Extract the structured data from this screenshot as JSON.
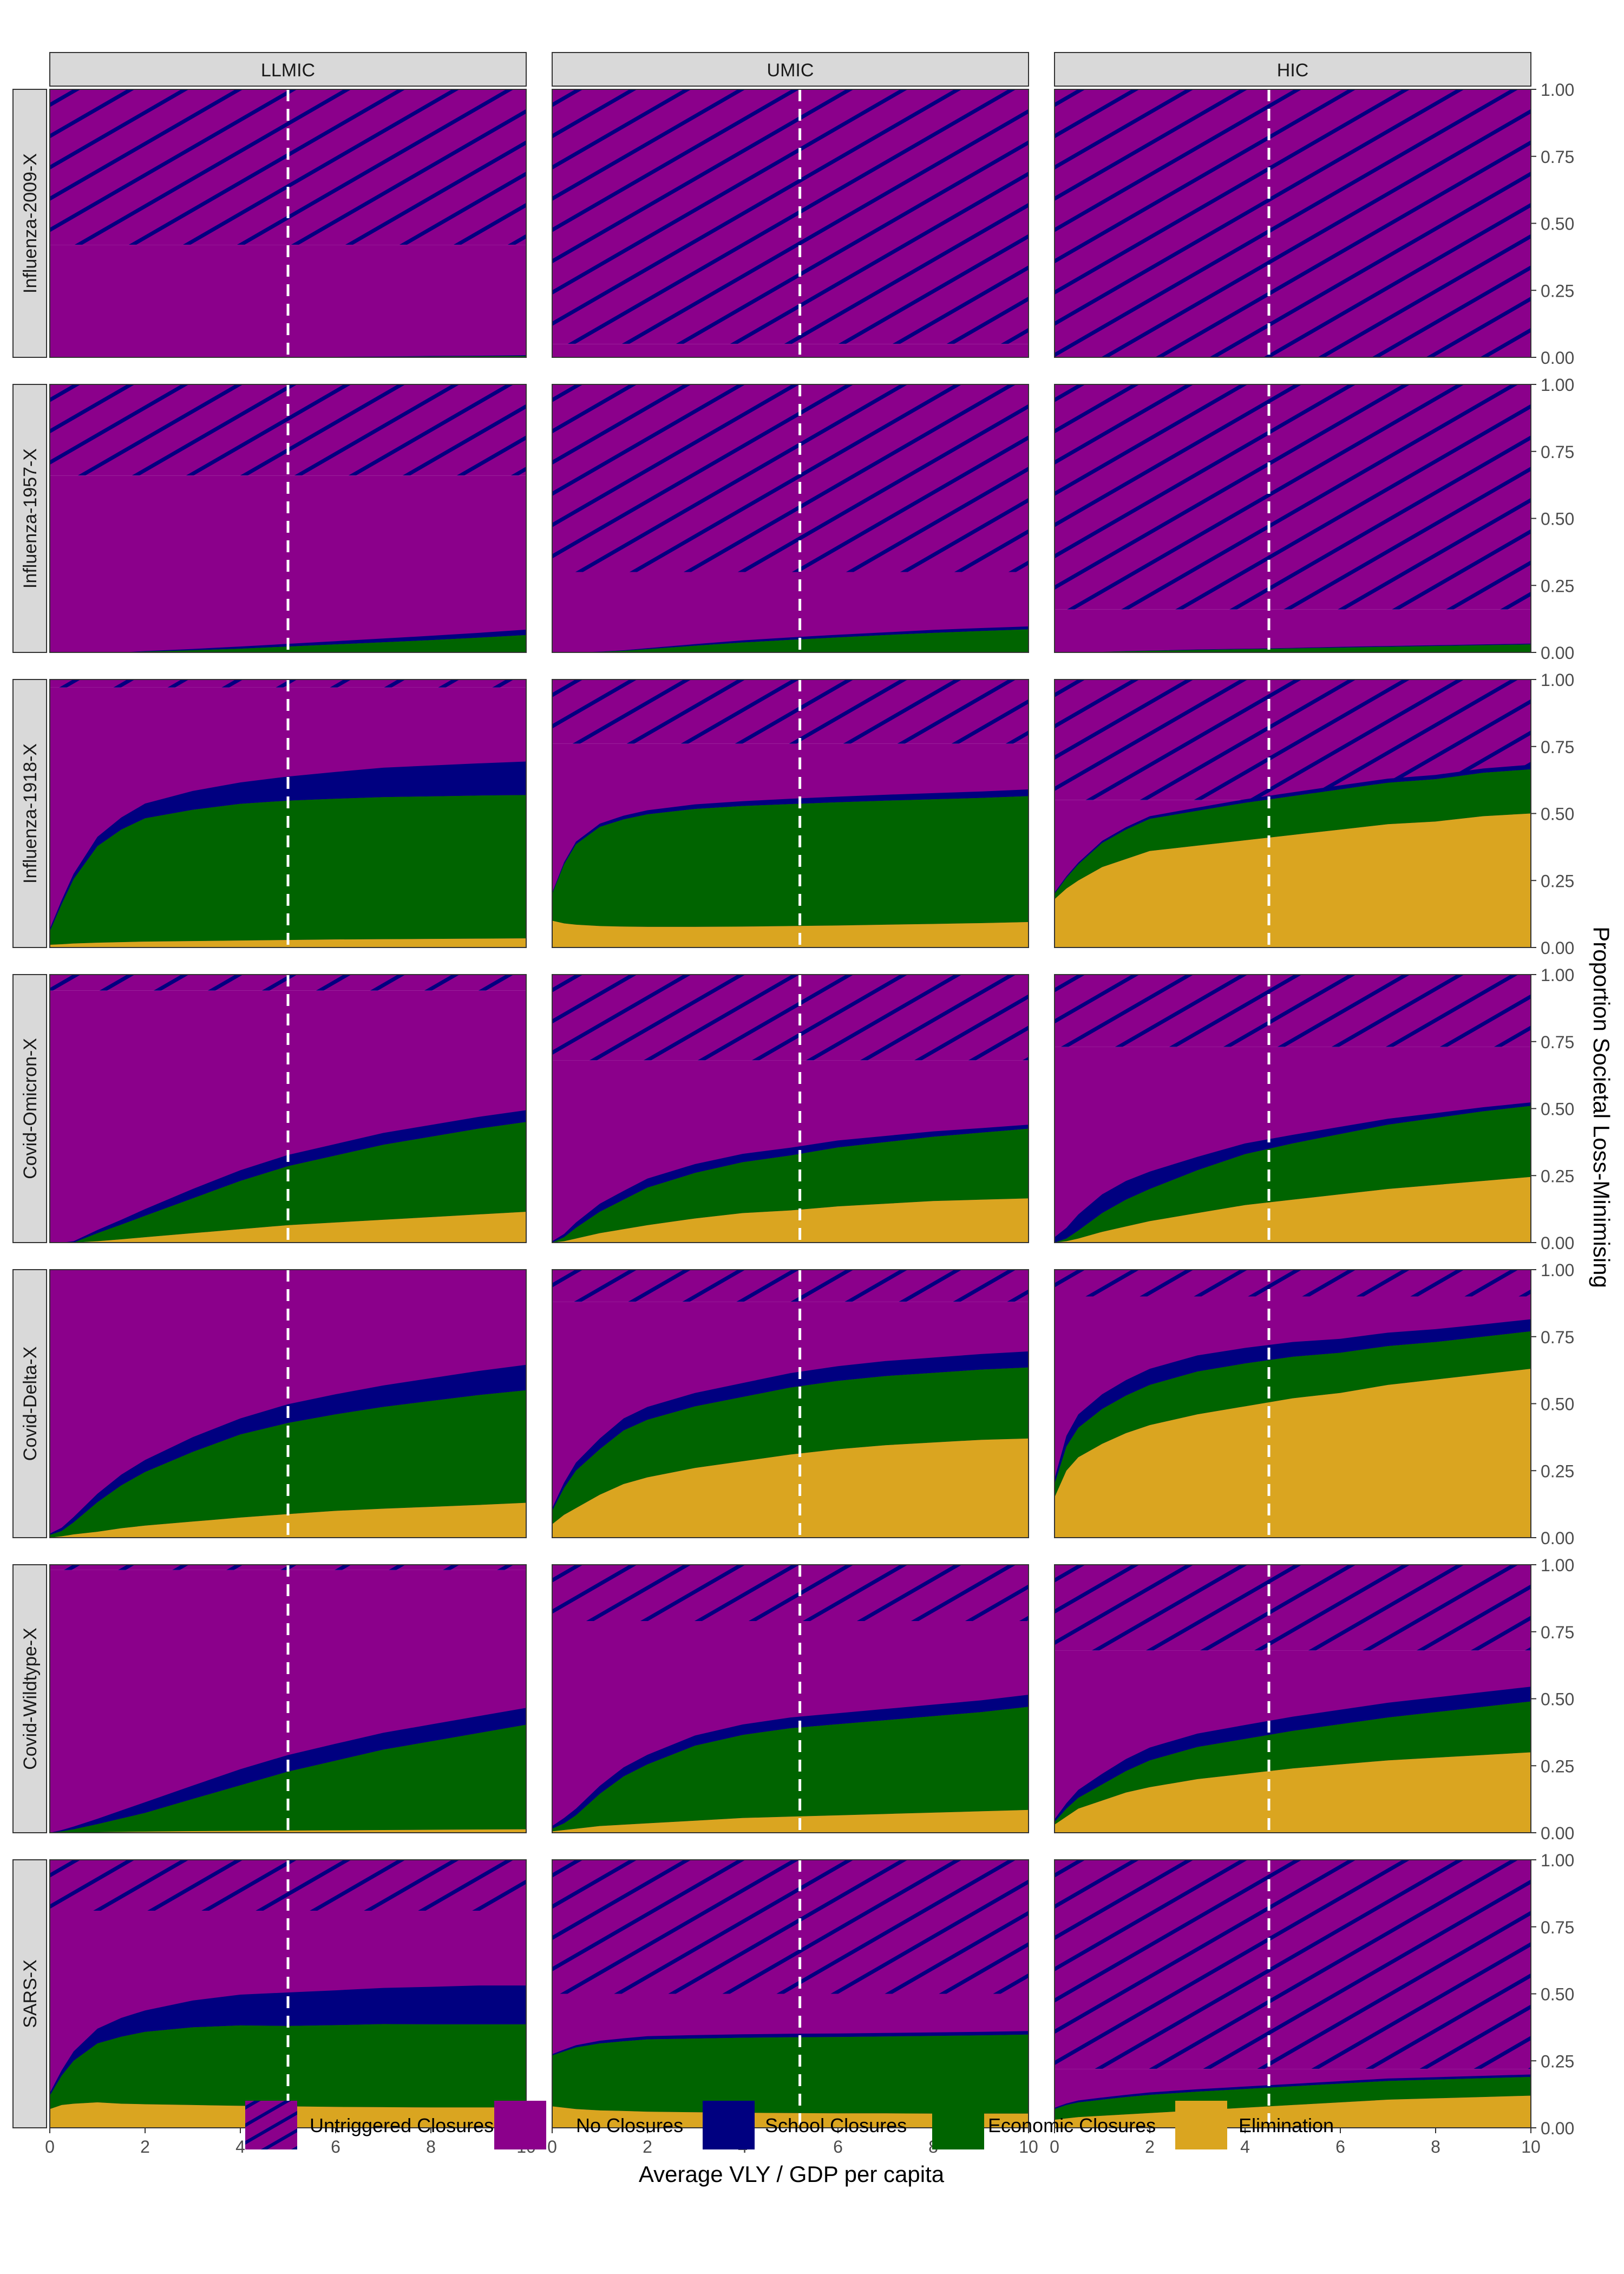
{
  "colors": {
    "untriggered": "#8b008b",
    "hatch_line": "#000080",
    "no_closures": "#8b008b",
    "school": "#000080",
    "economic": "#006400",
    "elimination": "#daa520",
    "strip_bg": "#d9d9d9",
    "vline": "#ffffff"
  },
  "chart_data": {
    "type": "area",
    "subtype": "stacked area, faceted grid",
    "xlabel": "Average VLY / GDP per capita",
    "ylabel": "Proportion Societal Loss-Minimising",
    "xlim": [
      0,
      10
    ],
    "ylim": [
      0,
      1
    ],
    "xticks": [
      "0",
      "2",
      "4",
      "6",
      "8",
      "10"
    ],
    "yticks": [
      "0.00",
      "0.25",
      "0.50",
      "0.75",
      "1.00"
    ],
    "columns": [
      "LLMIC",
      "UMIC",
      "HIC"
    ],
    "rows": [
      "Influenza-2009-X",
      "Influenza-1957-X",
      "Influenza-1918-X",
      "Covid-Omicron-X",
      "Covid-Delta-X",
      "Covid-Wildtype-X",
      "SARS-X"
    ],
    "reference_lines_x": {
      "LLMIC": 5.0,
      "UMIC": 5.2,
      "HIC": 4.5
    },
    "legend": {
      "position": "bottom",
      "items": [
        "Untriggered Closures",
        "No Closures",
        "School Closures",
        "Economic Closures",
        "Elimination"
      ]
    },
    "x": [
      0,
      0.25,
      0.5,
      1,
      1.5,
      2,
      3,
      4,
      5,
      6,
      7,
      8,
      9,
      10
    ],
    "panels": [
      {
        "row": "Influenza-2009-X",
        "col": "LLMIC",
        "untriggered": 0.58,
        "elimination": [
          0,
          0,
          0,
          0,
          0,
          0,
          0,
          0,
          0,
          0,
          0,
          0,
          0,
          0
        ],
        "economic": [
          0,
          0,
          0,
          0,
          0,
          0,
          0,
          0,
          0,
          0.001,
          0.002,
          0.003,
          0.004,
          0.005
        ],
        "school": [
          0,
          0,
          0,
          0,
          0,
          0,
          0,
          0,
          0,
          0.001,
          0.001,
          0.002,
          0.002,
          0.003
        ]
      },
      {
        "row": "Influenza-2009-X",
        "col": "UMIC",
        "untriggered": 0.95,
        "elimination": [
          0,
          0,
          0,
          0,
          0,
          0,
          0,
          0,
          0,
          0,
          0,
          0,
          0,
          0
        ],
        "economic": [
          0,
          0,
          0,
          0,
          0,
          0,
          0,
          0,
          0,
          0,
          0,
          0,
          0,
          0
        ],
        "school": [
          0,
          0,
          0,
          0,
          0,
          0,
          0,
          0,
          0,
          0,
          0,
          0,
          0,
          0
        ]
      },
      {
        "row": "Influenza-2009-X",
        "col": "HIC",
        "untriggered": 1.0,
        "elimination": [
          0,
          0,
          0,
          0,
          0,
          0,
          0,
          0,
          0,
          0,
          0,
          0,
          0,
          0
        ],
        "economic": [
          0,
          0,
          0,
          0,
          0,
          0,
          0,
          0,
          0,
          0,
          0,
          0,
          0,
          0
        ],
        "school": [
          0,
          0,
          0,
          0,
          0,
          0,
          0,
          0,
          0,
          0,
          0,
          0,
          0,
          0
        ]
      },
      {
        "row": "Influenza-1957-X",
        "col": "LLMIC",
        "untriggered": 0.34,
        "elimination": [
          0,
          0,
          0,
          0,
          0,
          0,
          0,
          0,
          0,
          0,
          0,
          0,
          0,
          0
        ],
        "economic": [
          0,
          0,
          0,
          0,
          0,
          0.003,
          0.008,
          0.014,
          0.022,
          0.03,
          0.038,
          0.046,
          0.055,
          0.065
        ],
        "school": [
          0,
          0,
          0,
          0,
          0,
          0.002,
          0.005,
          0.008,
          0.01,
          0.012,
          0.014,
          0.016,
          0.018,
          0.02
        ]
      },
      {
        "row": "Influenza-1957-X",
        "col": "UMIC",
        "untriggered": 0.7,
        "elimination": [
          0,
          0,
          0,
          0,
          0,
          0,
          0,
          0,
          0,
          0,
          0,
          0,
          0,
          0
        ],
        "economic": [
          0,
          0,
          0,
          0.002,
          0.006,
          0.012,
          0.025,
          0.037,
          0.047,
          0.056,
          0.065,
          0.073,
          0.08,
          0.086
        ],
        "school": [
          0,
          0,
          0,
          0.001,
          0.002,
          0.004,
          0.006,
          0.008,
          0.009,
          0.01,
          0.01,
          0.011,
          0.011,
          0.011
        ]
      },
      {
        "row": "Influenza-1957-X",
        "col": "HIC",
        "untriggered": 0.84,
        "elimination": [
          0,
          0,
          0,
          0,
          0,
          0,
          0,
          0,
          0,
          0,
          0,
          0,
          0,
          0
        ],
        "economic": [
          0,
          0,
          0,
          0.002,
          0.004,
          0.006,
          0.009,
          0.012,
          0.015,
          0.018,
          0.021,
          0.024,
          0.027,
          0.03
        ],
        "school": [
          0,
          0,
          0,
          0,
          0.001,
          0.001,
          0.002,
          0.002,
          0.002,
          0.003,
          0.003,
          0.003,
          0.003,
          0.003
        ]
      },
      {
        "row": "Influenza-1918-X",
        "col": "LLMIC",
        "untriggered": 0.03,
        "elimination": [
          0.01,
          0.012,
          0.015,
          0.018,
          0.02,
          0.022,
          0.024,
          0.026,
          0.028,
          0.03,
          0.031,
          0.032,
          0.033,
          0.034
        ],
        "economic": [
          0.05,
          0.15,
          0.24,
          0.36,
          0.42,
          0.46,
          0.49,
          0.51,
          0.52,
          0.525,
          0.53,
          0.532,
          0.534,
          0.535
        ],
        "school": [
          0.01,
          0.015,
          0.02,
          0.035,
          0.045,
          0.055,
          0.07,
          0.08,
          0.09,
          0.1,
          0.11,
          0.115,
          0.12,
          0.125
        ]
      },
      {
        "row": "Influenza-1918-X",
        "col": "UMIC",
        "untriggered": 0.24,
        "elimination": [
          0.1,
          0.09,
          0.085,
          0.08,
          0.078,
          0.077,
          0.077,
          0.078,
          0.08,
          0.082,
          0.085,
          0.088,
          0.091,
          0.095
        ],
        "economic": [
          0.1,
          0.22,
          0.3,
          0.37,
          0.4,
          0.42,
          0.44,
          0.45,
          0.455,
          0.46,
          0.463,
          0.465,
          0.467,
          0.47
        ],
        "school": [
          0.005,
          0.008,
          0.01,
          0.012,
          0.014,
          0.015,
          0.017,
          0.018,
          0.02,
          0.021,
          0.022,
          0.023,
          0.024,
          0.025
        ]
      },
      {
        "row": "Influenza-1918-X",
        "col": "HIC",
        "untriggered": 0.45,
        "elimination": [
          0.18,
          0.22,
          0.25,
          0.3,
          0.33,
          0.36,
          0.38,
          0.4,
          0.42,
          0.44,
          0.46,
          0.47,
          0.49,
          0.5
        ],
        "economic": [
          0.02,
          0.04,
          0.06,
          0.09,
          0.11,
          0.12,
          0.13,
          0.14,
          0.145,
          0.15,
          0.155,
          0.158,
          0.162,
          0.165
        ],
        "school": [
          0.005,
          0.006,
          0.007,
          0.008,
          0.009,
          0.01,
          0.012,
          0.013,
          0.014,
          0.015,
          0.015,
          0.016,
          0.016,
          0.017
        ]
      },
      {
        "row": "Covid-Omicron-X",
        "col": "LLMIC",
        "untriggered": 0.06,
        "elimination": [
          0,
          0,
          0,
          0.005,
          0.012,
          0.02,
          0.035,
          0.05,
          0.065,
          0.075,
          0.085,
          0.095,
          0.105,
          0.115
        ],
        "economic": [
          0,
          0,
          0,
          0.03,
          0.055,
          0.08,
          0.13,
          0.18,
          0.22,
          0.25,
          0.28,
          0.3,
          0.32,
          0.335
        ],
        "school": [
          0,
          0,
          0.005,
          0.012,
          0.018,
          0.025,
          0.035,
          0.04,
          0.042,
          0.043,
          0.044,
          0.044,
          0.044,
          0.044
        ]
      },
      {
        "row": "Covid-Omicron-X",
        "col": "UMIC",
        "untriggered": 0.32,
        "elimination": [
          0,
          0.005,
          0.015,
          0.035,
          0.05,
          0.065,
          0.09,
          0.11,
          0.12,
          0.135,
          0.145,
          0.155,
          0.16,
          0.165
        ],
        "economic": [
          0,
          0.015,
          0.04,
          0.08,
          0.11,
          0.14,
          0.17,
          0.19,
          0.205,
          0.22,
          0.23,
          0.24,
          0.25,
          0.26
        ],
        "school": [
          0.005,
          0.012,
          0.02,
          0.03,
          0.033,
          0.034,
          0.033,
          0.031,
          0.029,
          0.026,
          0.023,
          0.02,
          0.017,
          0.015
        ]
      },
      {
        "row": "Covid-Omicron-X",
        "col": "HIC",
        "untriggered": 0.27,
        "elimination": [
          0,
          0.005,
          0.015,
          0.04,
          0.06,
          0.08,
          0.11,
          0.14,
          0.16,
          0.18,
          0.2,
          0.215,
          0.23,
          0.245
        ],
        "economic": [
          0,
          0.01,
          0.03,
          0.07,
          0.1,
          0.12,
          0.16,
          0.19,
          0.21,
          0.225,
          0.24,
          0.25,
          0.26,
          0.265
        ],
        "school": [
          0.02,
          0.04,
          0.06,
          0.07,
          0.07,
          0.065,
          0.05,
          0.04,
          0.032,
          0.027,
          0.022,
          0.018,
          0.015,
          0.013
        ]
      },
      {
        "row": "Covid-Delta-X",
        "col": "LLMIC",
        "untriggered": 0.0,
        "elimination": [
          0,
          0.005,
          0.012,
          0.022,
          0.035,
          0.045,
          0.06,
          0.075,
          0.088,
          0.1,
          0.108,
          0.115,
          0.122,
          0.13
        ],
        "economic": [
          0.01,
          0.02,
          0.045,
          0.11,
          0.16,
          0.2,
          0.26,
          0.31,
          0.34,
          0.36,
          0.38,
          0.395,
          0.41,
          0.42
        ],
        "school": [
          0.005,
          0.012,
          0.02,
          0.032,
          0.04,
          0.045,
          0.055,
          0.06,
          0.07,
          0.075,
          0.08,
          0.085,
          0.09,
          0.095
        ]
      },
      {
        "row": "Covid-Delta-X",
        "col": "UMIC",
        "untriggered": 0.12,
        "elimination": [
          0.05,
          0.085,
          0.11,
          0.16,
          0.2,
          0.225,
          0.26,
          0.285,
          0.31,
          0.33,
          0.345,
          0.355,
          0.365,
          0.37
        ],
        "economic": [
          0.05,
          0.1,
          0.14,
          0.17,
          0.2,
          0.215,
          0.23,
          0.24,
          0.25,
          0.255,
          0.258,
          0.26,
          0.262,
          0.265
        ],
        "school": [
          0.01,
          0.02,
          0.03,
          0.04,
          0.045,
          0.048,
          0.05,
          0.052,
          0.054,
          0.055,
          0.056,
          0.057,
          0.058,
          0.06
        ]
      },
      {
        "row": "Covid-Delta-X",
        "col": "HIC",
        "untriggered": 0.1,
        "elimination": [
          0.15,
          0.25,
          0.3,
          0.35,
          0.39,
          0.42,
          0.46,
          0.49,
          0.52,
          0.54,
          0.57,
          0.59,
          0.61,
          0.63
        ],
        "economic": [
          0.05,
          0.09,
          0.11,
          0.13,
          0.14,
          0.15,
          0.16,
          0.16,
          0.155,
          0.15,
          0.145,
          0.14,
          0.14,
          0.14
        ],
        "school": [
          0.02,
          0.04,
          0.05,
          0.055,
          0.058,
          0.06,
          0.06,
          0.058,
          0.055,
          0.052,
          0.05,
          0.048,
          0.046,
          0.045
        ]
      },
      {
        "row": "Covid-Wildtype-X",
        "col": "LLMIC",
        "untriggered": 0.02,
        "elimination": [
          0,
          0,
          0.001,
          0.002,
          0.003,
          0.004,
          0.006,
          0.007,
          0.008,
          0.009,
          0.01,
          0.011,
          0.012,
          0.013
        ],
        "economic": [
          0,
          0.005,
          0.012,
          0.03,
          0.05,
          0.07,
          0.12,
          0.17,
          0.22,
          0.26,
          0.3,
          0.33,
          0.36,
          0.39
        ],
        "school": [
          0,
          0.005,
          0.01,
          0.02,
          0.03,
          0.04,
          0.05,
          0.06,
          0.062,
          0.063,
          0.063,
          0.063,
          0.063,
          0.063
        ]
      },
      {
        "row": "Covid-Wildtype-X",
        "col": "UMIC",
        "untriggered": 0.21,
        "elimination": [
          0.005,
          0.01,
          0.015,
          0.025,
          0.03,
          0.035,
          0.045,
          0.055,
          0.06,
          0.065,
          0.07,
          0.075,
          0.08,
          0.085
        ],
        "economic": [
          0.01,
          0.025,
          0.05,
          0.12,
          0.18,
          0.22,
          0.28,
          0.31,
          0.33,
          0.34,
          0.35,
          0.36,
          0.37,
          0.385
        ],
        "school": [
          0.01,
          0.02,
          0.025,
          0.03,
          0.034,
          0.036,
          0.038,
          0.039,
          0.04,
          0.041,
          0.042,
          0.043,
          0.044,
          0.045
        ]
      },
      {
        "row": "Covid-Wildtype-X",
        "col": "HIC",
        "untriggered": 0.32,
        "elimination": [
          0.03,
          0.06,
          0.09,
          0.12,
          0.15,
          0.17,
          0.2,
          0.22,
          0.24,
          0.255,
          0.27,
          0.28,
          0.29,
          0.3
        ],
        "economic": [
          0.01,
          0.03,
          0.04,
          0.06,
          0.08,
          0.1,
          0.12,
          0.13,
          0.14,
          0.15,
          0.16,
          0.17,
          0.18,
          0.19
        ],
        "school": [
          0.01,
          0.02,
          0.03,
          0.04,
          0.045,
          0.048,
          0.05,
          0.052,
          0.053,
          0.054,
          0.055,
          0.055,
          0.055,
          0.055
        ]
      },
      {
        "row": "SARS-X",
        "col": "LLMIC",
        "untriggered": 0.19,
        "elimination": [
          0.07,
          0.085,
          0.09,
          0.095,
          0.09,
          0.088,
          0.085,
          0.082,
          0.08,
          0.078,
          0.077,
          0.076,
          0.076,
          0.076
        ],
        "economic": [
          0.05,
          0.11,
          0.16,
          0.22,
          0.25,
          0.27,
          0.29,
          0.3,
          0.3,
          0.305,
          0.31,
          0.31,
          0.31,
          0.31
        ],
        "school": [
          0.01,
          0.02,
          0.035,
          0.055,
          0.07,
          0.08,
          0.1,
          0.115,
          0.125,
          0.13,
          0.135,
          0.14,
          0.145,
          0.145
        ]
      },
      {
        "row": "SARS-X",
        "col": "UMIC",
        "untriggered": 0.5,
        "elimination": [
          0.08,
          0.075,
          0.07,
          0.065,
          0.063,
          0.06,
          0.058,
          0.056,
          0.055,
          0.054,
          0.054,
          0.053,
          0.053,
          0.053
        ],
        "economic": [
          0.19,
          0.21,
          0.23,
          0.25,
          0.26,
          0.27,
          0.275,
          0.28,
          0.283,
          0.285,
          0.287,
          0.29,
          0.292,
          0.295
        ],
        "school": [
          0.005,
          0.007,
          0.008,
          0.01,
          0.011,
          0.012,
          0.013,
          0.013,
          0.013,
          0.013,
          0.013,
          0.013,
          0.013,
          0.013
        ]
      },
      {
        "row": "SARS-X",
        "col": "HIC",
        "untriggered": 0.78,
        "elimination": [
          0.03,
          0.035,
          0.04,
          0.045,
          0.05,
          0.055,
          0.065,
          0.075,
          0.085,
          0.095,
          0.105,
          0.11,
          0.115,
          0.12
        ],
        "economic": [
          0.04,
          0.05,
          0.055,
          0.06,
          0.065,
          0.068,
          0.07,
          0.07,
          0.07,
          0.07,
          0.07,
          0.07,
          0.07,
          0.07
        ],
        "school": [
          0.005,
          0.006,
          0.007,
          0.008,
          0.008,
          0.009,
          0.009,
          0.009,
          0.009,
          0.009,
          0.009,
          0.009,
          0.009,
          0.009
        ]
      }
    ]
  }
}
